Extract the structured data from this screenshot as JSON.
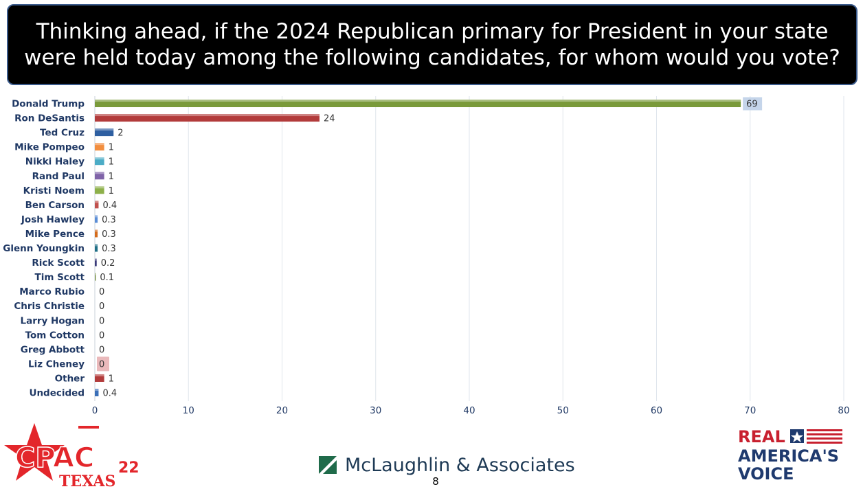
{
  "title": "Thinking ahead, if the 2024 Republican primary for President in your state were held today among the following candidates, for whom would you vote?",
  "chart_data": {
    "type": "bar",
    "orientation": "horizontal",
    "categories": [
      "Donald Trump",
      "Ron DeSantis",
      "Ted Cruz",
      "Mike Pompeo",
      "Nikki Haley",
      "Rand Paul",
      "Kristi Noem",
      "Ben Carson",
      "Josh Hawley",
      "Mike Pence",
      "Glenn Youngkin",
      "Rick Scott",
      "Tim Scott",
      "Marco Rubio",
      "Chris Christie",
      "Larry Hogan",
      "Tom Cotton",
      "Greg Abbott",
      "Liz Cheney",
      "Other",
      "Undecided"
    ],
    "values": [
      69,
      24,
      2,
      1,
      1,
      1,
      1,
      0.4,
      0.3,
      0.3,
      0.3,
      0.2,
      0.1,
      0,
      0,
      0,
      0,
      0,
      0,
      1,
      0.4
    ],
    "value_labels": [
      "69",
      "24",
      "2",
      "1",
      "1",
      "1",
      "1",
      "0.4",
      "0.3",
      "0.3",
      "0.3",
      "0.2",
      "0.1",
      "0",
      "0",
      "0",
      "0",
      "0",
      "0",
      "1",
      "0.4"
    ],
    "colors": [
      "#7a9a3a",
      "#b23b3b",
      "#2e5fa1",
      "#f28e3f",
      "#4bacc6",
      "#7f63a8",
      "#8db04a",
      "#c0504d",
      "#5b8dd6",
      "#d36b1c",
      "#1f6f86",
      "#3b3b7a",
      "#6f8a3a",
      "#2e5fa1",
      "#c0504d",
      "#2e5fa1",
      "#2e5fa1",
      "#2e5fa1",
      "#c0504d",
      "#b23b3b",
      "#3a6fb8"
    ],
    "xlim": [
      0,
      80
    ],
    "xticks": [
      0,
      10,
      20,
      30,
      40,
      50,
      60,
      70,
      80
    ],
    "xlabel": "",
    "ylabel": "",
    "grid": "vertical",
    "legend": "none"
  },
  "footer": {
    "logo_left_text": "CPAC",
    "logo_left_year": "22",
    "logo_left_sub": "TEXAS",
    "center_text": "McLaughlin & Associates",
    "page_number": "8",
    "logo_right_line1": "REAL",
    "logo_right_line2": "AMERICA'S",
    "logo_right_line3": "VOICE"
  }
}
